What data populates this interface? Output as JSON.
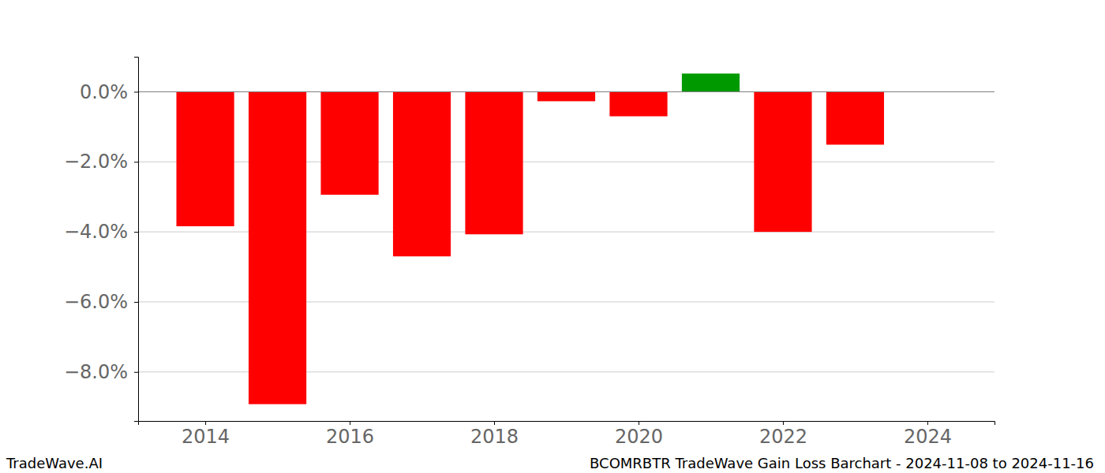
{
  "chart_data": {
    "type": "bar",
    "title": "BCOMRBTR TradeWave Gain Loss Barchart - 2024-11-08 to 2024-11-16",
    "annotations": [
      "TradeWave.AI"
    ],
    "x": [
      2014,
      2015,
      2016,
      2017,
      2018,
      2019,
      2020,
      2021,
      2022,
      2023
    ],
    "values": [
      -3.84,
      -8.92,
      -2.94,
      -4.7,
      -4.07,
      -0.27,
      -0.7,
      0.52,
      -4.0,
      -1.51
    ],
    "colors": [
      "#ff0000",
      "#ff0000",
      "#ff0000",
      "#ff0000",
      "#ff0000",
      "#ff0000",
      "#ff0000",
      "#009900",
      "#ff0000",
      "#ff0000"
    ],
    "xlim": [
      2013.07,
      2024.93
    ],
    "xticks": [
      2014,
      2016,
      2018,
      2020,
      2022,
      2024
    ],
    "ylim": [
      -9.4,
      1.0
    ],
    "yticks": [
      {
        "value": 0,
        "label": "0.0%"
      },
      {
        "value": -2,
        "label": "−2.0%"
      },
      {
        "value": -4,
        "label": "−4.0%"
      },
      {
        "value": -6,
        "label": "−6.0%"
      },
      {
        "value": -8,
        "label": "−8.0%"
      }
    ],
    "grid": true
  }
}
